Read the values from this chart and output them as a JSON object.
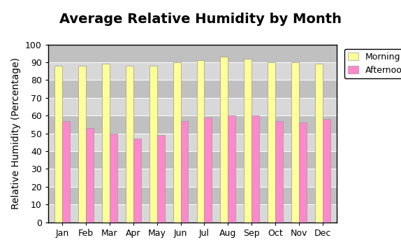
{
  "title": "Average Relative Humidity by Month",
  "ylabel": "Relative Humidity (Percentage)",
  "months": [
    "Jan",
    "Feb",
    "Mar",
    "Apr",
    "May",
    "Jun",
    "Jul",
    "Aug",
    "Sep",
    "Oct",
    "Nov",
    "Dec"
  ],
  "morning": [
    88,
    88,
    89,
    88,
    88,
    90,
    91,
    93,
    92,
    90,
    90,
    89
  ],
  "afternoon": [
    57,
    53,
    50,
    47,
    49,
    57,
    59,
    60,
    60,
    57,
    56,
    58
  ],
  "morning_color": "#ffff99",
  "afternoon_color": "#ff88cc",
  "bar_edge_color": "#999999",
  "ylim": [
    0,
    100
  ],
  "yticks": [
    0,
    10,
    20,
    30,
    40,
    50,
    60,
    70,
    80,
    90,
    100
  ],
  "plot_bg_color": "#c0c0c0",
  "fig_bg_color": "#ffffff",
  "title_fontsize": 14,
  "axis_label_fontsize": 10,
  "tick_fontsize": 9,
  "legend_fontsize": 9,
  "bar_width": 0.32
}
